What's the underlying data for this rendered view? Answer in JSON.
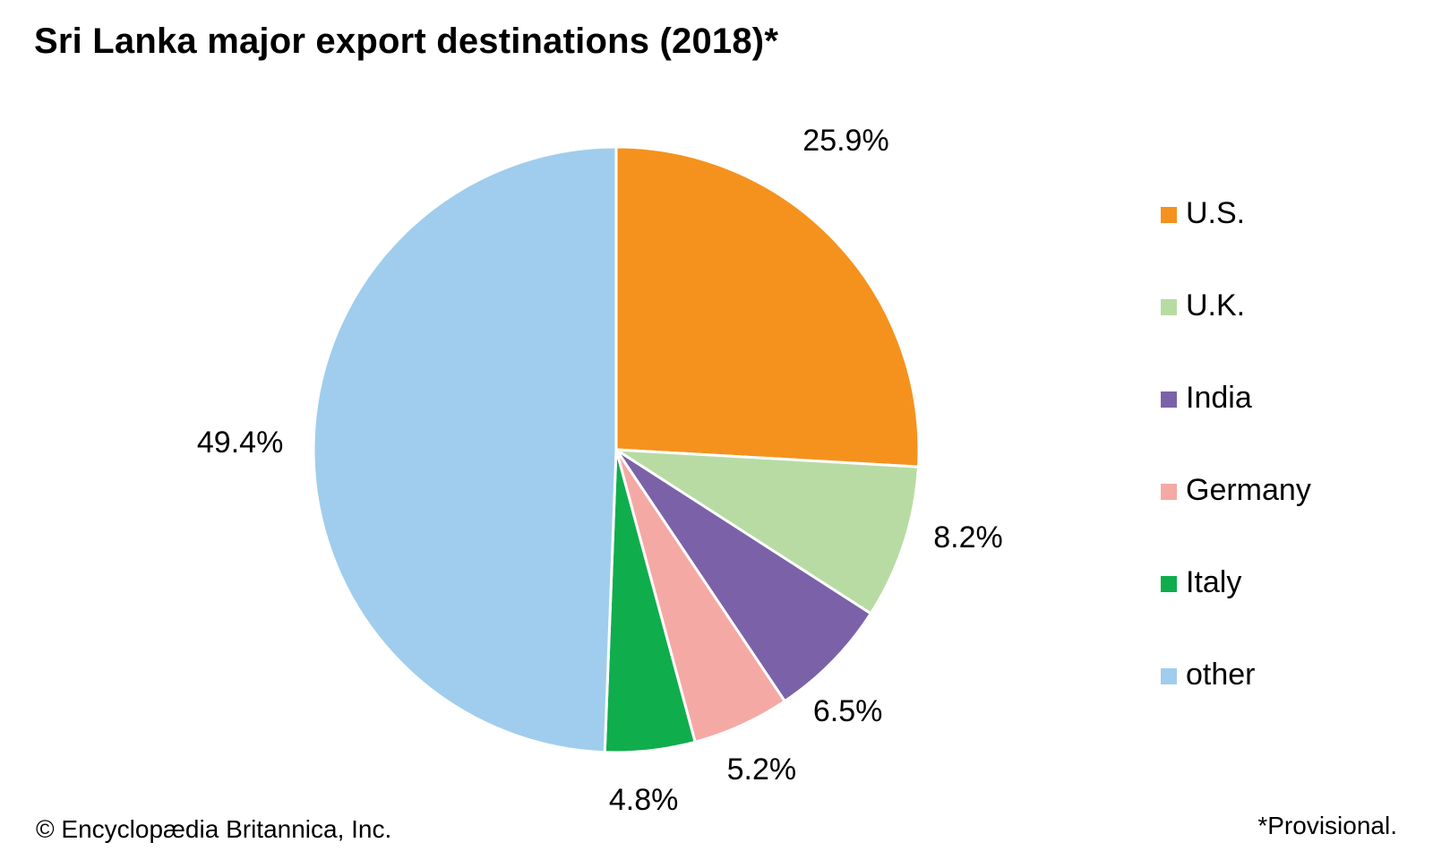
{
  "chart_data": {
    "type": "pie",
    "title": "Sri Lanka major export destinations (2018)*",
    "start": "12 o'clock",
    "direction": "clockwise",
    "legend_position": "right",
    "slices": [
      {
        "name": "U.S.",
        "value": 25.9,
        "label": "25.9%",
        "color": "#F5921E"
      },
      {
        "name": "U.K.",
        "value": 8.2,
        "label": "8.2%",
        "color": "#B8DBA4"
      },
      {
        "name": "India",
        "value": 6.5,
        "label": "6.5%",
        "color": "#7B62A8"
      },
      {
        "name": "Germany",
        "value": 5.2,
        "label": "5.2%",
        "color": "#F5A9A5"
      },
      {
        "name": "Italy",
        "value": 4.8,
        "label": "4.8%",
        "color": "#10AD4D"
      },
      {
        "name": "other",
        "value": 49.4,
        "label": "49.4%",
        "color": "#A0CDED"
      }
    ]
  },
  "footer": {
    "copyright": "© Encyclopædia Britannica, Inc.",
    "note": "*Provisional."
  }
}
